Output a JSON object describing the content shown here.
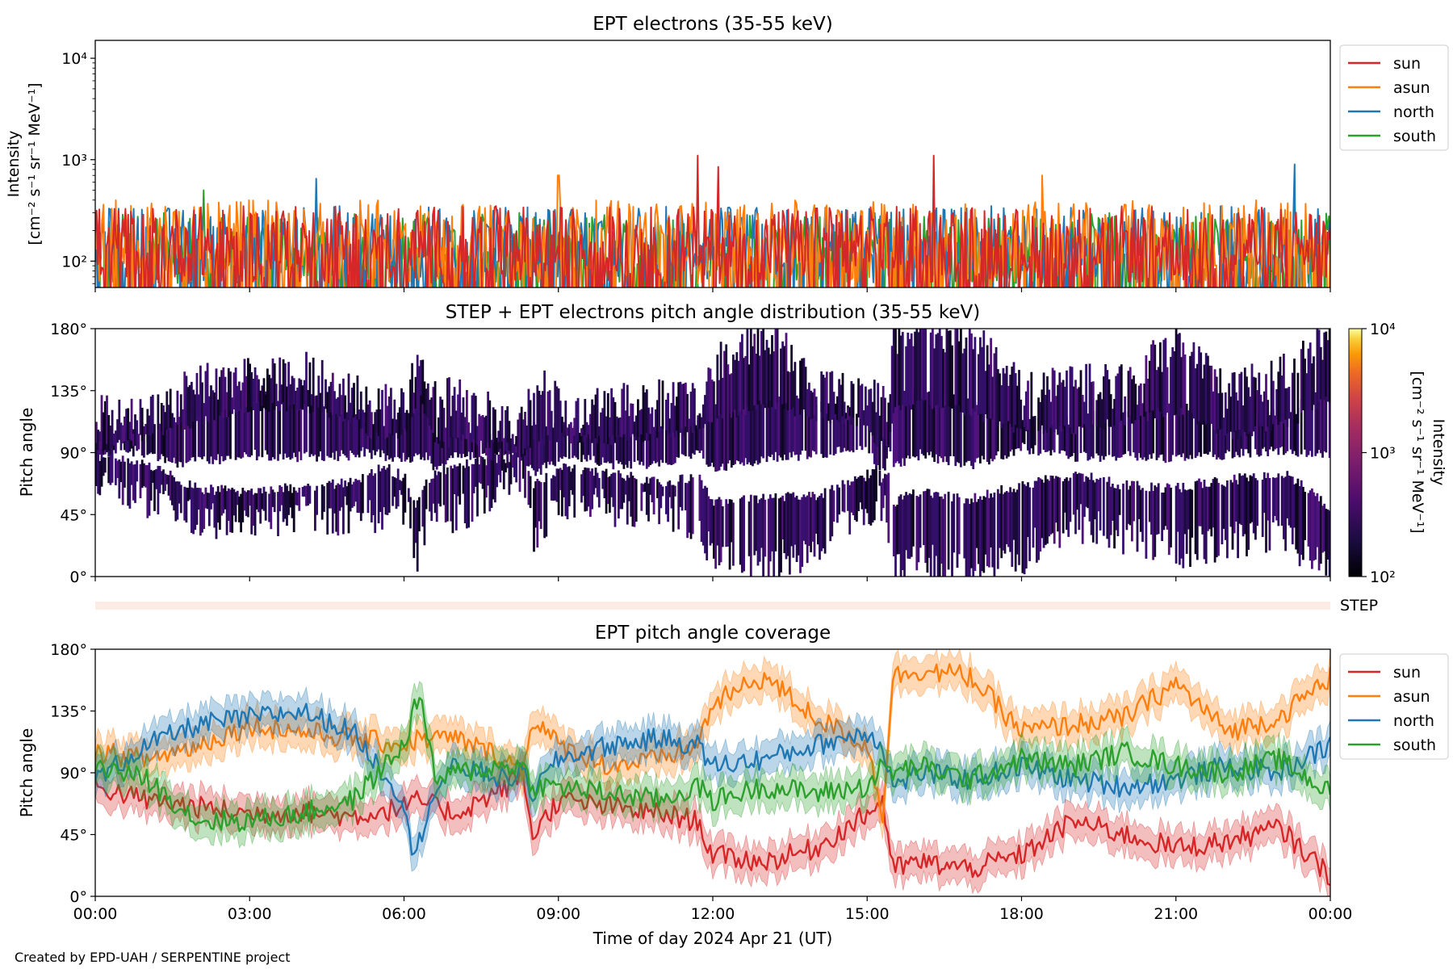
{
  "figure": {
    "footer": "Created by EPD-UAH / SERPENTINE project",
    "xlabel": "Time of day 2024 Apr 21 (UT)",
    "x_ticks": [
      "00:00",
      "03:00",
      "06:00",
      "09:00",
      "12:00",
      "15:00",
      "18:00",
      "21:00",
      "00:00"
    ]
  },
  "chart_data": [
    {
      "type": "line",
      "title": "EPT electrons (35-55 keV)",
      "ylabel_line1": "Intensity",
      "ylabel_line2": "[cm⁻² s⁻¹ sr⁻¹ MeV⁻¹]",
      "yscale": "log",
      "ylim": [
        55,
        15000
      ],
      "y_ticks": [
        "10²",
        "10³",
        "10⁴"
      ],
      "x_range_hours": [
        0,
        24
      ],
      "legend_position": "outside-right",
      "series": [
        {
          "name": "sun",
          "color": "#d62728",
          "typical_range": [
            60,
            350
          ],
          "spikes": [
            {
              "hour": 11.7,
              "value": 1100
            },
            {
              "hour": 16.3,
              "value": 1100
            },
            {
              "hour": 12.1,
              "value": 850
            }
          ]
        },
        {
          "name": "asun",
          "color": "#ff7f0e",
          "typical_range": [
            60,
            400
          ],
          "spikes": [
            {
              "hour": 9.0,
              "value": 700
            },
            {
              "hour": 18.4,
              "value": 700
            }
          ]
        },
        {
          "name": "north",
          "color": "#1f77b4",
          "typical_range": [
            60,
            350
          ],
          "spikes": [
            {
              "hour": 23.3,
              "value": 900
            },
            {
              "hour": 4.3,
              "value": 650
            }
          ]
        },
        {
          "name": "south",
          "color": "#2ca02c",
          "typical_range": [
            60,
            300
          ],
          "spikes": [
            {
              "hour": 2.1,
              "value": 500
            }
          ]
        }
      ]
    },
    {
      "type": "heatmap",
      "title": "STEP + EPT electrons pitch angle distribution (35-55 keV)",
      "ylabel": "Pitch angle",
      "ylim": [
        0,
        180
      ],
      "y_ticks": [
        "0°",
        "45°",
        "90°",
        "135°",
        "180°"
      ],
      "colorbar": {
        "scale": "log",
        "range": [
          100,
          10000
        ],
        "ticks": [
          "10²",
          "10³",
          "10⁴"
        ],
        "label_line1": "Intensity",
        "label_line2": "[cm⁻² s⁻¹ sr⁻¹ MeV⁻¹]",
        "colormap": "inferno"
      },
      "step_label": "STEP"
    },
    {
      "type": "line",
      "title": "EPT pitch angle coverage",
      "ylabel": "Pitch angle",
      "ylim": [
        0,
        180
      ],
      "y_ticks": [
        "0°",
        "45°",
        "90°",
        "135°",
        "180°"
      ],
      "x_range_hours": [
        0,
        24
      ],
      "legend_position": "outside-right",
      "series": [
        {
          "name": "sun",
          "color": "#d62728",
          "x": [
            0,
            1,
            2,
            3,
            4,
            5,
            6,
            6.3,
            7,
            8,
            8.3,
            8.5,
            9,
            10,
            11,
            11.7,
            12,
            13,
            14,
            15,
            15.3,
            15.5,
            16,
            17,
            18,
            19,
            20,
            21,
            22,
            23,
            24
          ],
          "values": [
            80,
            70,
            65,
            60,
            62,
            58,
            65,
            70,
            60,
            80,
            90,
            45,
            70,
            65,
            60,
            55,
            30,
            25,
            35,
            60,
            70,
            20,
            25,
            20,
            30,
            55,
            45,
            35,
            40,
            50,
            15
          ]
        },
        {
          "name": "asun",
          "color": "#ff7f0e",
          "x": [
            0,
            1,
            2,
            3,
            4,
            5,
            6,
            6.3,
            7,
            8,
            8.3,
            8.5,
            9,
            10,
            11,
            11.7,
            12,
            13,
            14,
            15,
            15.3,
            15.5,
            16,
            17,
            18,
            19,
            20,
            21,
            22,
            23,
            24
          ],
          "values": [
            105,
            100,
            110,
            125,
            120,
            115,
            110,
            115,
            115,
            100,
            90,
            130,
            110,
            95,
            100,
            110,
            140,
            160,
            130,
            110,
            60,
            160,
            165,
            160,
            120,
            125,
            130,
            155,
            120,
            130,
            160
          ]
        },
        {
          "name": "north",
          "color": "#1f77b4",
          "x": [
            0,
            1,
            2,
            3,
            4,
            5,
            6,
            6.2,
            6.5,
            7,
            8,
            8.3,
            8.5,
            9,
            10,
            11,
            11.7,
            12,
            13,
            14,
            15,
            15.3,
            15.5,
            16,
            17,
            18,
            19,
            20,
            21,
            22,
            23,
            24
          ],
          "values": [
            85,
            110,
            125,
            130,
            135,
            120,
            70,
            25,
            70,
            95,
            85,
            90,
            75,
            100,
            110,
            115,
            110,
            95,
            100,
            110,
            120,
            110,
            80,
            90,
            85,
            95,
            85,
            80,
            85,
            95,
            90,
            110
          ]
        },
        {
          "name": "south",
          "color": "#2ca02c",
          "x": [
            0,
            1,
            2,
            3,
            4,
            5,
            6,
            6.3,
            6.6,
            7,
            8,
            8.3,
            8.5,
            9,
            10,
            11,
            11.7,
            12,
            13,
            14,
            15,
            15.3,
            15.5,
            16,
            17,
            18,
            19,
            20,
            21,
            22,
            23,
            24
          ],
          "values": [
            95,
            85,
            55,
            55,
            60,
            70,
            110,
            150,
            85,
            90,
            95,
            95,
            80,
            80,
            75,
            70,
            80,
            70,
            80,
            75,
            80,
            95,
            90,
            95,
            85,
            100,
            95,
            105,
            95,
            90,
            100,
            75
          ]
        }
      ]
    }
  ]
}
